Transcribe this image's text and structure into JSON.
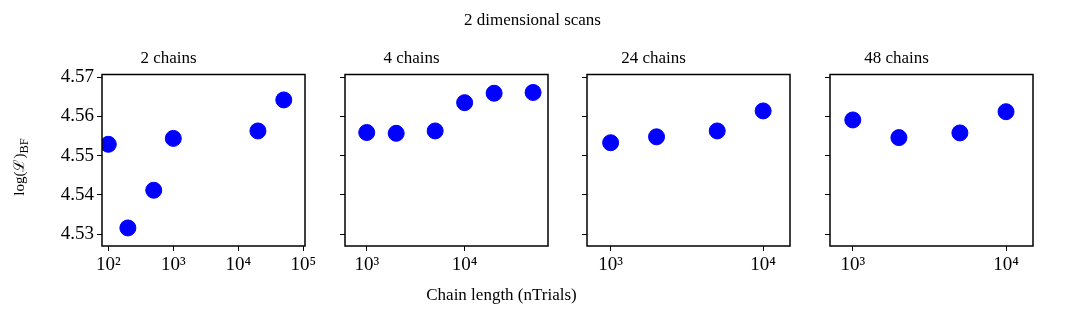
{
  "chart_data": [
    {
      "type": "scatter",
      "title": "2 chains",
      "annotations": [
        "2 dimensional scans"
      ],
      "ylabel": "log(ℒ)$_{BF}$",
      "log": "x",
      "marker": "circle",
      "color": "#0000ff",
      "x": [
        100,
        200,
        500,
        1000,
        20000,
        50000
      ],
      "values": [
        4.5529,
        4.5316,
        4.5412,
        4.5544,
        4.5563,
        4.5642
      ],
      "xlim": [
        80,
        106000
      ],
      "xticks": [
        {
          "value": 100,
          "label": "10²"
        },
        {
          "value": 1000,
          "label": "10³"
        },
        {
          "value": 10000,
          "label": "10⁴"
        },
        {
          "value": 100000,
          "label": "10⁵"
        }
      ],
      "ylim": [
        4.527,
        4.5707
      ],
      "yticks": [
        4.53,
        4.54,
        4.55,
        4.56,
        4.57
      ]
    },
    {
      "type": "scatter",
      "title": "4 chains",
      "xlabel": "Chain length (nTrials)",
      "log": "x",
      "marker": "circle",
      "color": "#0000ff",
      "tick_labels": "x",
      "x": [
        1000,
        2000,
        5000,
        10000,
        20000,
        50000
      ],
      "values": [
        4.5559,
        4.5557,
        4.5563,
        4.5635,
        4.5659,
        4.5661
      ],
      "xlim": [
        600,
        71000
      ],
      "xticks": [
        {
          "value": 1000,
          "label": "10³"
        },
        {
          "value": 10000,
          "label": "10⁴"
        }
      ],
      "ylim": [
        4.527,
        4.5707
      ],
      "yticks": [
        4.53,
        4.54,
        4.55,
        4.56,
        4.57
      ]
    },
    {
      "type": "scatter",
      "title": "24 chains",
      "log": "x",
      "marker": "circle",
      "color": "#0000ff",
      "tick_labels": "x",
      "x": [
        1000,
        2000,
        5000,
        10000
      ],
      "values": [
        4.5533,
        4.5548,
        4.5563,
        4.5614
      ],
      "xlim": [
        700,
        15000
      ],
      "xticks": [
        {
          "value": 1000,
          "label": "10³"
        },
        {
          "value": 10000,
          "label": "10⁴"
        }
      ],
      "ylim": [
        4.527,
        4.5707
      ],
      "yticks": [
        4.53,
        4.54,
        4.55,
        4.56,
        4.57
      ]
    },
    {
      "type": "scatter",
      "title": "48 chains",
      "log": "x",
      "marker": "circle",
      "color": "#0000ff",
      "tick_labels": "x",
      "x": [
        1000,
        2000,
        5000,
        10000
      ],
      "values": [
        4.5591,
        4.5546,
        4.5558,
        4.5612
      ],
      "xlim": [
        710,
        15000
      ],
      "xticks": [
        {
          "value": 1000,
          "label": "10³"
        },
        {
          "value": 10000,
          "label": "10⁴"
        }
      ],
      "ylim": [
        4.527,
        4.5707
      ],
      "yticks": [
        4.53,
        4.54,
        4.55,
        4.56,
        4.57
      ]
    }
  ]
}
